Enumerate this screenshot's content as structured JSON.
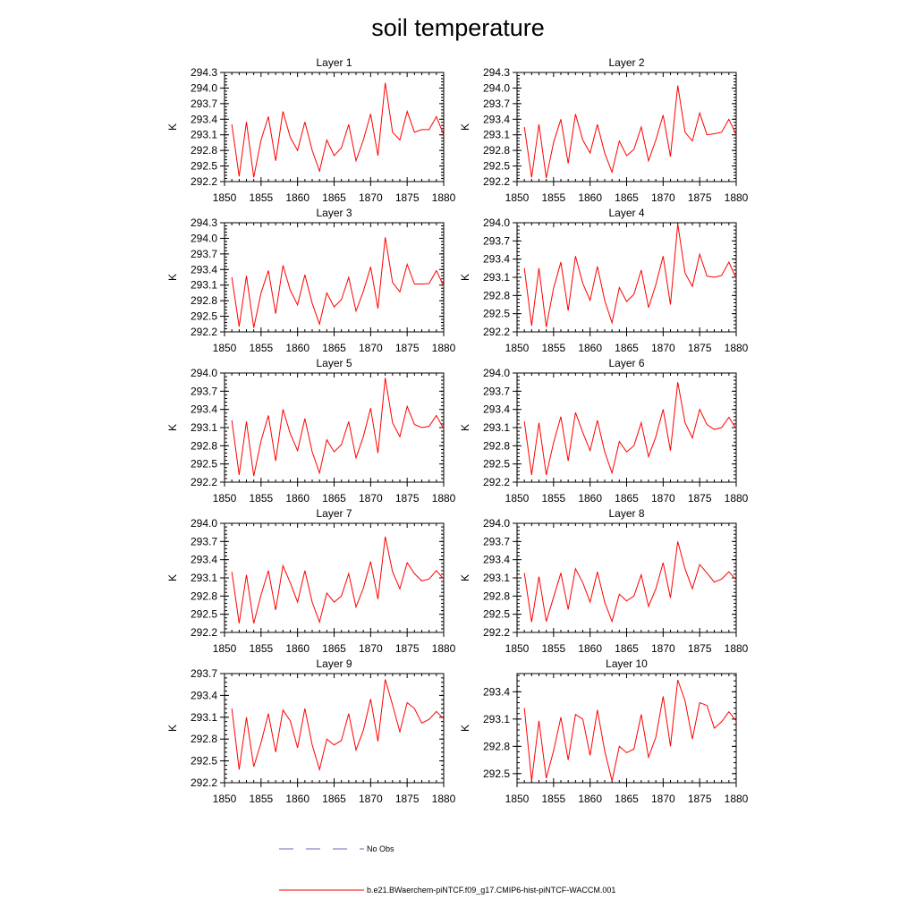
{
  "figure": {
    "title": "soil temperature"
  },
  "legend": {
    "no_obs_label": "No Obs",
    "no_obs_color": "#6a6ab8",
    "run_label": "b.e21.BWaerchem-piNTCF.f09_g17.CMIP6-hist-piNTCF-WACCM.001",
    "run_color": "#ff0000"
  },
  "chart_data": [
    {
      "type": "line",
      "title": "Layer 1",
      "ylabel": "K",
      "x": [
        1851,
        1852,
        1853,
        1854,
        1855,
        1856,
        1857,
        1858,
        1859,
        1860,
        1861,
        1862,
        1863,
        1864,
        1865,
        1866,
        1867,
        1868,
        1869,
        1870,
        1871,
        1872,
        1873,
        1874,
        1875,
        1876,
        1877,
        1878,
        1879,
        1880
      ],
      "xlim": [
        1850,
        1880
      ],
      "xticks": [
        1850,
        1855,
        1860,
        1865,
        1870,
        1875,
        1880
      ],
      "ylim": [
        292.2,
        294.3
      ],
      "yticks": [
        "292.2",
        "292.5",
        "292.8",
        "293.1",
        "293.4",
        "293.7",
        "294.0",
        "294.3"
      ],
      "series": [
        {
          "color": "#ff0000",
          "values": [
            293.3,
            292.3,
            293.35,
            292.28,
            293.0,
            293.45,
            292.6,
            293.55,
            293.05,
            292.8,
            293.35,
            292.8,
            292.4,
            293.0,
            292.7,
            292.85,
            293.3,
            292.6,
            293.0,
            293.5,
            292.7,
            294.1,
            293.15,
            293.0,
            293.55,
            293.15,
            293.2,
            293.2,
            293.45,
            293.1
          ]
        }
      ]
    },
    {
      "type": "line",
      "title": "Layer 2",
      "ylabel": "K",
      "x": [
        1851,
        1852,
        1853,
        1854,
        1855,
        1856,
        1857,
        1858,
        1859,
        1860,
        1861,
        1862,
        1863,
        1864,
        1865,
        1866,
        1867,
        1868,
        1869,
        1870,
        1871,
        1872,
        1873,
        1874,
        1875,
        1876,
        1877,
        1878,
        1879,
        1880
      ],
      "xlim": [
        1850,
        1880
      ],
      "xticks": [
        1850,
        1855,
        1860,
        1865,
        1870,
        1875,
        1880
      ],
      "ylim": [
        292.2,
        294.3
      ],
      "yticks": [
        "292.2",
        "292.5",
        "292.8",
        "293.1",
        "293.4",
        "293.7",
        "294.0",
        "294.3"
      ],
      "series": [
        {
          "color": "#ff0000",
          "values": [
            293.25,
            292.28,
            293.3,
            292.27,
            292.95,
            293.4,
            292.55,
            293.5,
            293.0,
            292.75,
            293.3,
            292.75,
            292.38,
            292.98,
            292.7,
            292.82,
            293.25,
            292.6,
            293.0,
            293.48,
            292.68,
            294.05,
            293.15,
            292.98,
            293.52,
            293.1,
            293.12,
            293.15,
            293.4,
            293.1
          ]
        }
      ]
    },
    {
      "type": "line",
      "title": "Layer 3",
      "ylabel": "K",
      "x": [
        1851,
        1852,
        1853,
        1854,
        1855,
        1856,
        1857,
        1858,
        1859,
        1860,
        1861,
        1862,
        1863,
        1864,
        1865,
        1866,
        1867,
        1868,
        1869,
        1870,
        1871,
        1872,
        1873,
        1874,
        1875,
        1876,
        1877,
        1878,
        1879,
        1880
      ],
      "xlim": [
        1850,
        1880
      ],
      "xticks": [
        1850,
        1855,
        1860,
        1865,
        1870,
        1875,
        1880
      ],
      "ylim": [
        292.2,
        294.3
      ],
      "yticks": [
        "292.2",
        "292.5",
        "292.8",
        "293.1",
        "293.4",
        "293.7",
        "294.0",
        "294.3"
      ],
      "series": [
        {
          "color": "#ff0000",
          "values": [
            293.25,
            292.3,
            293.28,
            292.28,
            292.95,
            293.38,
            292.55,
            293.48,
            293.0,
            292.72,
            293.3,
            292.75,
            292.35,
            292.95,
            292.68,
            292.82,
            293.25,
            292.6,
            292.98,
            293.45,
            292.65,
            294.02,
            293.15,
            292.97,
            293.5,
            293.12,
            293.12,
            293.13,
            293.38,
            293.08
          ]
        }
      ]
    },
    {
      "type": "line",
      "title": "Layer 4",
      "ylabel": "K",
      "x": [
        1851,
        1852,
        1853,
        1854,
        1855,
        1856,
        1857,
        1858,
        1859,
        1860,
        1861,
        1862,
        1863,
        1864,
        1865,
        1866,
        1867,
        1868,
        1869,
        1870,
        1871,
        1872,
        1873,
        1874,
        1875,
        1876,
        1877,
        1878,
        1879,
        1880
      ],
      "xlim": [
        1850,
        1880
      ],
      "xticks": [
        1850,
        1855,
        1860,
        1865,
        1870,
        1875,
        1880
      ],
      "ylim": [
        292.2,
        294.0
      ],
      "yticks": [
        "292.2",
        "292.5",
        "292.8",
        "293.1",
        "293.4",
        "293.7",
        "294.0"
      ],
      "series": [
        {
          "color": "#ff0000",
          "values": [
            293.25,
            292.3,
            293.25,
            292.28,
            292.92,
            293.35,
            292.55,
            293.45,
            293.0,
            292.72,
            293.28,
            292.72,
            292.35,
            292.93,
            292.7,
            292.82,
            293.22,
            292.6,
            292.98,
            293.45,
            292.65,
            293.98,
            293.17,
            292.95,
            293.48,
            293.12,
            293.1,
            293.13,
            293.35,
            293.08
          ]
        }
      ]
    },
    {
      "type": "line",
      "title": "Layer 5",
      "ylabel": "K",
      "x": [
        1851,
        1852,
        1853,
        1854,
        1855,
        1856,
        1857,
        1858,
        1859,
        1860,
        1861,
        1862,
        1863,
        1864,
        1865,
        1866,
        1867,
        1868,
        1869,
        1870,
        1871,
        1872,
        1873,
        1874,
        1875,
        1876,
        1877,
        1878,
        1879,
        1880
      ],
      "xlim": [
        1850,
        1880
      ],
      "xticks": [
        1850,
        1855,
        1860,
        1865,
        1870,
        1875,
        1880
      ],
      "ylim": [
        292.2,
        294.0
      ],
      "yticks": [
        "292.2",
        "292.5",
        "292.8",
        "293.1",
        "293.4",
        "293.7",
        "294.0"
      ],
      "series": [
        {
          "color": "#ff0000",
          "values": [
            293.22,
            292.32,
            293.2,
            292.3,
            292.88,
            293.3,
            292.55,
            293.4,
            293.0,
            292.72,
            293.25,
            292.7,
            292.35,
            292.9,
            292.7,
            292.82,
            293.2,
            292.6,
            292.95,
            293.42,
            292.68,
            293.92,
            293.18,
            292.95,
            293.45,
            293.15,
            293.1,
            293.12,
            293.3,
            293.08
          ]
        }
      ]
    },
    {
      "type": "line",
      "title": "Layer 6",
      "ylabel": "K",
      "x": [
        1851,
        1852,
        1853,
        1854,
        1855,
        1856,
        1857,
        1858,
        1859,
        1860,
        1861,
        1862,
        1863,
        1864,
        1865,
        1866,
        1867,
        1868,
        1869,
        1870,
        1871,
        1872,
        1873,
        1874,
        1875,
        1876,
        1877,
        1878,
        1879,
        1880
      ],
      "xlim": [
        1850,
        1880
      ],
      "xticks": [
        1850,
        1855,
        1860,
        1865,
        1870,
        1875,
        1880
      ],
      "ylim": [
        292.2,
        294.0
      ],
      "yticks": [
        "292.2",
        "292.5",
        "292.8",
        "293.1",
        "293.4",
        "293.7",
        "294.0"
      ],
      "series": [
        {
          "color": "#ff0000",
          "values": [
            293.2,
            292.32,
            293.18,
            292.32,
            292.85,
            293.28,
            292.55,
            293.35,
            293.02,
            292.72,
            293.22,
            292.7,
            292.35,
            292.87,
            292.7,
            292.8,
            293.18,
            292.62,
            292.95,
            293.4,
            292.72,
            293.85,
            293.18,
            292.93,
            293.4,
            293.15,
            293.07,
            293.1,
            293.27,
            293.08
          ]
        }
      ]
    },
    {
      "type": "line",
      "title": "Layer 7",
      "ylabel": "K",
      "x": [
        1851,
        1852,
        1853,
        1854,
        1855,
        1856,
        1857,
        1858,
        1859,
        1860,
        1861,
        1862,
        1863,
        1864,
        1865,
        1866,
        1867,
        1868,
        1869,
        1870,
        1871,
        1872,
        1873,
        1874,
        1875,
        1876,
        1877,
        1878,
        1879,
        1880
      ],
      "xlim": [
        1850,
        1880
      ],
      "xticks": [
        1850,
        1855,
        1860,
        1865,
        1870,
        1875,
        1880
      ],
      "ylim": [
        292.2,
        294.0
      ],
      "yticks": [
        "292.2",
        "292.5",
        "292.8",
        "293.1",
        "293.4",
        "293.7",
        "294.0"
      ],
      "series": [
        {
          "color": "#ff0000",
          "values": [
            293.2,
            292.35,
            293.15,
            292.35,
            292.82,
            293.22,
            292.57,
            293.3,
            293.02,
            292.7,
            293.22,
            292.7,
            292.37,
            292.85,
            292.7,
            292.8,
            293.17,
            292.62,
            292.93,
            293.37,
            292.75,
            293.78,
            293.2,
            292.92,
            293.35,
            293.17,
            293.05,
            293.08,
            293.22,
            293.08
          ]
        }
      ]
    },
    {
      "type": "line",
      "title": "Layer 8",
      "ylabel": "K",
      "x": [
        1851,
        1852,
        1853,
        1854,
        1855,
        1856,
        1857,
        1858,
        1859,
        1860,
        1861,
        1862,
        1863,
        1864,
        1865,
        1866,
        1867,
        1868,
        1869,
        1870,
        1871,
        1872,
        1873,
        1874,
        1875,
        1876,
        1877,
        1878,
        1879,
        1880
      ],
      "xlim": [
        1850,
        1880
      ],
      "xticks": [
        1850,
        1855,
        1860,
        1865,
        1870,
        1875,
        1880
      ],
      "ylim": [
        292.2,
        294.0
      ],
      "yticks": [
        "292.2",
        "292.5",
        "292.8",
        "293.1",
        "293.4",
        "293.7",
        "294.0"
      ],
      "series": [
        {
          "color": "#ff0000",
          "values": [
            293.18,
            292.37,
            293.12,
            292.38,
            292.78,
            293.18,
            292.58,
            293.25,
            293.02,
            292.7,
            293.2,
            292.7,
            292.38,
            292.83,
            292.72,
            292.8,
            293.15,
            292.63,
            292.92,
            293.35,
            292.77,
            293.7,
            293.25,
            292.92,
            293.32,
            293.18,
            293.03,
            293.08,
            293.2,
            293.07
          ]
        }
      ]
    },
    {
      "type": "line",
      "title": "Layer 9",
      "ylabel": "K",
      "x": [
        1851,
        1852,
        1853,
        1854,
        1855,
        1856,
        1857,
        1858,
        1859,
        1860,
        1861,
        1862,
        1863,
        1864,
        1865,
        1866,
        1867,
        1868,
        1869,
        1870,
        1871,
        1872,
        1873,
        1874,
        1875,
        1876,
        1877,
        1878,
        1879,
        1880
      ],
      "xlim": [
        1850,
        1880
      ],
      "xticks": [
        1850,
        1855,
        1860,
        1865,
        1870,
        1875,
        1880
      ],
      "ylim": [
        292.2,
        293.7
      ],
      "yticks": [
        "292.2",
        "292.5",
        "292.8",
        "293.1",
        "293.4",
        "293.7"
      ],
      "series": [
        {
          "color": "#ff0000",
          "values": [
            293.22,
            292.38,
            293.1,
            292.42,
            292.75,
            293.15,
            292.62,
            293.2,
            293.05,
            292.68,
            293.22,
            292.72,
            292.38,
            292.8,
            292.72,
            292.78,
            293.15,
            292.65,
            292.92,
            293.35,
            292.77,
            293.62,
            293.27,
            292.9,
            293.3,
            293.22,
            293.02,
            293.07,
            293.18,
            293.08
          ]
        }
      ]
    },
    {
      "type": "line",
      "title": "Layer 10",
      "ylabel": "K",
      "x": [
        1851,
        1852,
        1853,
        1854,
        1855,
        1856,
        1857,
        1858,
        1859,
        1860,
        1861,
        1862,
        1863,
        1864,
        1865,
        1866,
        1867,
        1868,
        1869,
        1870,
        1871,
        1872,
        1873,
        1874,
        1875,
        1876,
        1877,
        1878,
        1879,
        1880
      ],
      "xlim": [
        1850,
        1880
      ],
      "xticks": [
        1850,
        1855,
        1860,
        1865,
        1870,
        1875,
        1880
      ],
      "ylim": [
        292.4,
        293.6
      ],
      "yticks": [
        "292.5",
        "292.8",
        "293.1",
        "293.4"
      ],
      "series": [
        {
          "color": "#ff0000",
          "values": [
            293.22,
            292.42,
            293.08,
            292.45,
            292.75,
            293.12,
            292.65,
            293.15,
            293.1,
            292.7,
            293.2,
            292.75,
            292.42,
            292.8,
            292.73,
            292.77,
            293.15,
            292.68,
            292.9,
            293.35,
            292.8,
            293.53,
            293.3,
            292.88,
            293.28,
            293.25,
            293.0,
            293.07,
            293.18,
            293.08
          ]
        }
      ]
    }
  ]
}
